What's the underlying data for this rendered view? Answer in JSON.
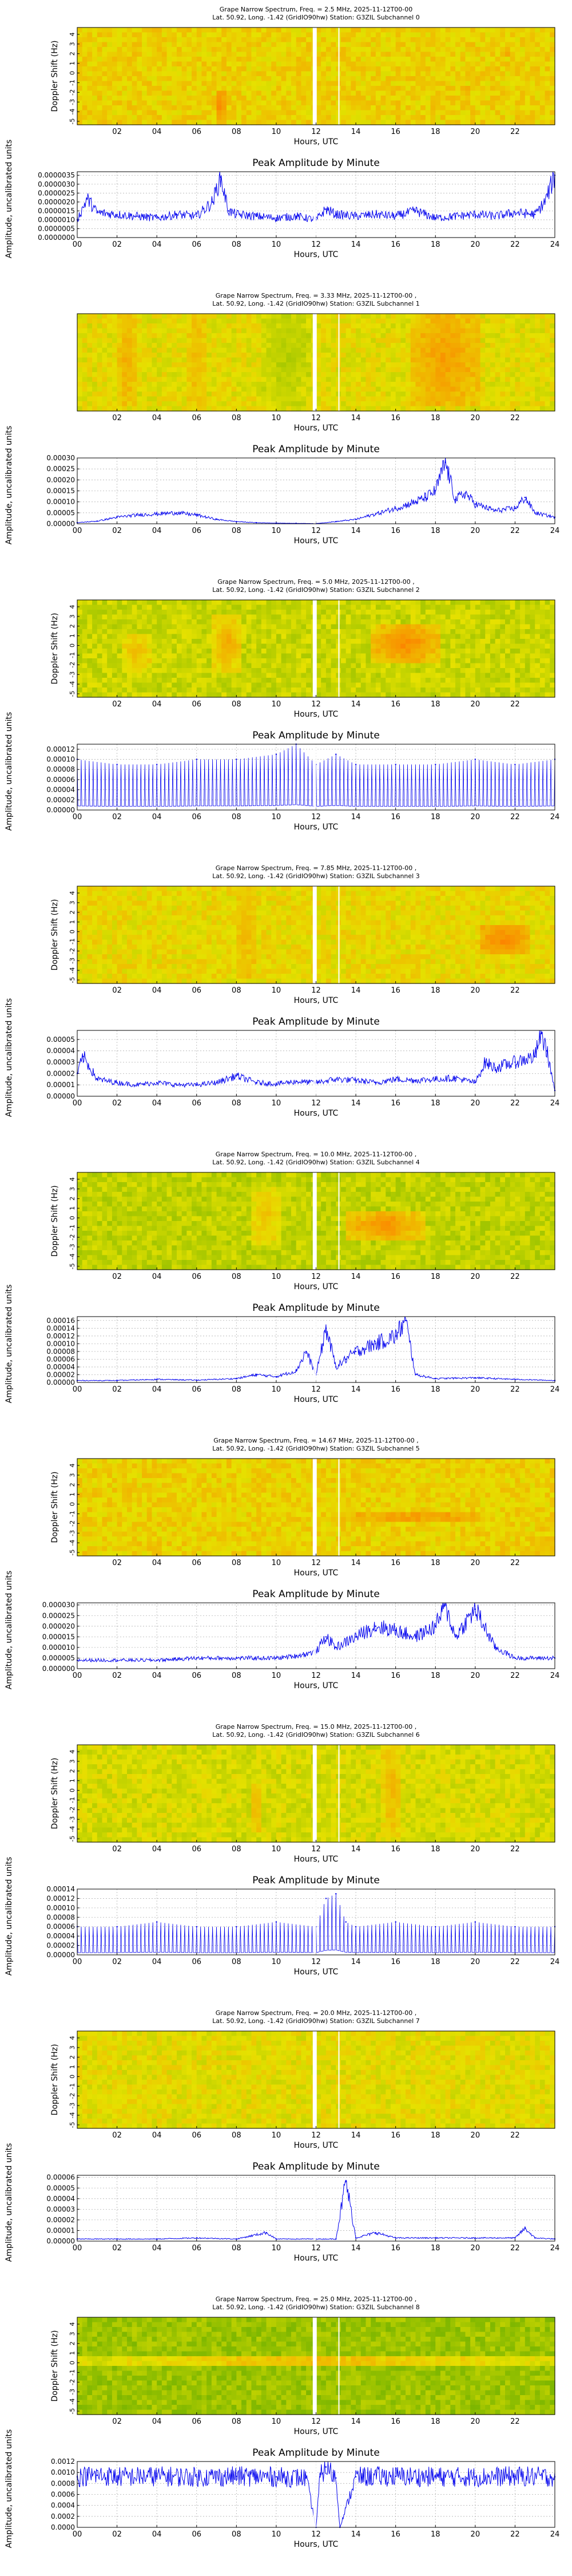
{
  "colors": {
    "line": "#0000ee",
    "spec_green": "#56b000",
    "spec_yellow": "#e6e600",
    "spec_orange": "#ff8000",
    "white_gap": "#ffffff"
  },
  "chart_data": [
    {
      "channel": 0,
      "type": "heatmap",
      "title_line1": "Grape Narrow Spectrum, Freq. = 2.5 MHz, 2025-11-12T00-00",
      "title_line2": "Lat.  50.92, Long.  -1.42 (GridIO90hw) Station: G3ZIL Subchannel 0",
      "xlabel": "Hours, UTC",
      "ylabel": "Doppler Shift (Hz)",
      "xticks": [
        "02",
        "04",
        "06",
        "08",
        "10",
        "12",
        "14",
        "16",
        "18",
        "20",
        "22"
      ],
      "yticks": [
        "4",
        "3",
        "2",
        "1",
        "0",
        "-1",
        "-2",
        "-3",
        "-4",
        "-5"
      ],
      "base": 0.62,
      "features": [
        {
          "x": 7.2,
          "y": -3.5,
          "w": 0.35,
          "h": 3,
          "v": 1.0
        },
        {
          "x": 19.5,
          "y": -2.2,
          "w": 0.25,
          "h": 1,
          "v": 0.8
        },
        {
          "x": 21.5,
          "y": 2.0,
          "w": 0.3,
          "h": 0.8,
          "v": 0.85
        }
      ]
    },
    {
      "channel": 0,
      "type": "line",
      "title": "Peak Amplitude by Minute",
      "xlabel": "Hours, UTC",
      "ylabel": "Amplitude, uncalibrated units",
      "xticks": [
        "00",
        "02",
        "04",
        "06",
        "08",
        "10",
        "12",
        "14",
        "16",
        "18",
        "20",
        "22",
        "24"
      ],
      "yticks": [
        "0.0000000",
        "0.0000005",
        "0.0000010",
        "0.0000015",
        "0.0000020",
        "0.0000025",
        "0.0000030",
        "0.0000035"
      ],
      "ylim": [
        0,
        3.7e-06
      ],
      "x": [
        0,
        0.5,
        1,
        2,
        3,
        4,
        5,
        6,
        6.8,
        7.2,
        7.6,
        8,
        9,
        10,
        11,
        12,
        12.5,
        13,
        14,
        15,
        16,
        17,
        18,
        19,
        20,
        21,
        22,
        23,
        23.5,
        24
      ],
      "y": [
        1e-06,
        2.2e-06,
        1.4e-06,
        1.3e-06,
        1.2e-06,
        1.1e-06,
        1.3e-06,
        1.2e-06,
        2e-06,
        3.4e-06,
        1.5e-06,
        1.3e-06,
        1.2e-06,
        1.1e-06,
        1.2e-06,
        1e-06,
        1.6e-06,
        1.3e-06,
        1.2e-06,
        1.3e-06,
        1.2e-06,
        1.5e-06,
        1.1e-06,
        1.2e-06,
        1.3e-06,
        1.2e-06,
        1.4e-06,
        1.3e-06,
        2e-06,
        3.5e-06
      ]
    },
    {
      "channel": 1,
      "type": "heatmap",
      "title_line1": "Grape Narrow Spectrum, Freq. = 3.33 MHz, 2025-11-12T00-00 ,",
      "title_line2": "Lat.  50.92, Long.  -1.42 (GridIO90hw) Station: G3ZIL Subchannel 1",
      "xlabel": "Hours, UTC",
      "ylabel": "",
      "xticks": [
        "02",
        "04",
        "06",
        "08",
        "10",
        "12",
        "14",
        "16",
        "18",
        "20",
        "22"
      ],
      "yticks": [],
      "base": 0.55,
      "features": [
        {
          "x": 2.5,
          "y": 0,
          "w": 1.0,
          "h": 10,
          "v": 0.78
        },
        {
          "x": 6.0,
          "y": 0,
          "w": 1.2,
          "h": 10,
          "v": 0.72
        },
        {
          "x": 18.5,
          "y": 0,
          "w": 3.5,
          "h": 10,
          "v": 0.85
        },
        {
          "x": 10.5,
          "y": 0,
          "w": 2.5,
          "h": 10,
          "v": 0.38
        }
      ]
    },
    {
      "channel": 1,
      "type": "line",
      "title": "Peak Amplitude by Minute",
      "xlabel": "Hours, UTC",
      "ylabel": "Amplitude, uncalibrated units",
      "xticks": [
        "00",
        "02",
        "04",
        "06",
        "08",
        "10",
        "12",
        "14",
        "16",
        "18",
        "20",
        "22",
        "24"
      ],
      "yticks": [
        "0.00000",
        "0.00005",
        "0.00010",
        "0.00015",
        "0.00020",
        "0.00025",
        "0.00030"
      ],
      "ylim": [
        0,
        0.0003
      ],
      "x": [
        0,
        1,
        2,
        3,
        4,
        5,
        6,
        7,
        8,
        9,
        10,
        11,
        12,
        13,
        14,
        15,
        16,
        17,
        17.5,
        18,
        18.5,
        19,
        19.5,
        20,
        21,
        22,
        22.5,
        23,
        24
      ],
      "y": [
        5e-06,
        1.2e-05,
        3e-05,
        4e-05,
        4.5e-05,
        5e-05,
        4e-05,
        2e-05,
        1e-05,
        5e-06,
        3e-06,
        2e-06,
        1e-06,
        1e-05,
        2e-05,
        4.5e-05,
        7e-05,
        0.0001,
        0.00012,
        0.00015,
        0.00028,
        0.00011,
        0.00014,
        9e-05,
        6e-05,
        7e-05,
        0.00012,
        5e-05,
        3e-05
      ]
    },
    {
      "channel": 2,
      "type": "heatmap",
      "title_line1": "Grape Narrow Spectrum, Freq. = 5.0 MHz, 2025-11-12T00-00 ,",
      "title_line2": "Lat.  50.92, Long.  -1.42 (GridIO90hw) Station: G3ZIL Subchannel 2",
      "xlabel": "Hours, UTC",
      "ylabel": "Doppler Shift (Hz)",
      "xticks": [
        "02",
        "04",
        "06",
        "08",
        "10",
        "12",
        "14",
        "16",
        "18",
        "20",
        "22"
      ],
      "yticks": [
        "4",
        "3",
        "2",
        "1",
        "0",
        "-1",
        "-2",
        "-3",
        "-4",
        "-5"
      ],
      "base": 0.45,
      "features": [
        {
          "x": 7.5,
          "y": 0,
          "w": 1.5,
          "h": 6,
          "v": 0.8
        },
        {
          "x": 16.5,
          "y": 0,
          "w": 3.5,
          "h": 4,
          "v": 0.95
        },
        {
          "x": 3.0,
          "y": -1,
          "w": 1.5,
          "h": 4,
          "v": 0.7
        }
      ]
    },
    {
      "channel": 2,
      "type": "line",
      "title": "Peak Amplitude by Minute",
      "xlabel": "Hours, UTC",
      "ylabel": "Amplitude, uncalibrated units",
      "xticks": [
        "00",
        "02",
        "04",
        "06",
        "08",
        "10",
        "12",
        "14",
        "16",
        "18",
        "20",
        "22",
        "24"
      ],
      "yticks": [
        "0.00000",
        "0.00002",
        "0.00004",
        "0.00006",
        "0.00008",
        "0.00010",
        "0.00012"
      ],
      "ylim": [
        0,
        0.00013
      ],
      "x": [
        0,
        2,
        4,
        6,
        8,
        10,
        11,
        12,
        13,
        14,
        16,
        18,
        20,
        22,
        24
      ],
      "y": [
        0.0001,
        9e-05,
        9e-05,
        0.0001,
        0.0001,
        0.00011,
        0.00013,
        9e-05,
        0.00011,
        9e-05,
        9e-05,
        9e-05,
        0.0001,
        9e-05,
        0.0001
      ]
    },
    {
      "channel": 3,
      "type": "heatmap",
      "title_line1": "Grape Narrow Spectrum, Freq. = 7.85 MHz, 2025-11-12T00-00 ,",
      "title_line2": "Lat.  50.92, Long.  -1.42 (GridIO90hw) Station: G3ZIL Subchannel 3",
      "xlabel": "Hours, UTC",
      "ylabel": "Doppler Shift (Hz)",
      "xticks": [
        "02",
        "04",
        "06",
        "08",
        "10",
        "12",
        "14",
        "16",
        "18",
        "20",
        "22"
      ],
      "yticks": [
        "4",
        "3",
        "2",
        "1",
        "0",
        "-1",
        "-2",
        "-3",
        "-4",
        "-5"
      ],
      "base": 0.58,
      "features": [
        {
          "x": 21.5,
          "y": -1,
          "w": 2.5,
          "h": 3,
          "v": 0.95
        },
        {
          "x": 8.5,
          "y": 0,
          "w": 1.0,
          "h": 10,
          "v": 0.72
        }
      ]
    },
    {
      "channel": 3,
      "type": "line",
      "title": "Peak Amplitude by Minute",
      "xlabel": "Hours, UTC",
      "ylabel": "Amplitude, uncalibrated units",
      "xticks": [
        "00",
        "02",
        "04",
        "06",
        "08",
        "10",
        "12",
        "14",
        "16",
        "18",
        "20",
        "22",
        "24"
      ],
      "yticks": [
        "0.00000",
        "0.00001",
        "0.00002",
        "0.00003",
        "0.00004",
        "0.00005"
      ],
      "ylim": [
        0,
        5.8e-05
      ],
      "x": [
        0,
        0.3,
        1,
        2,
        3,
        4,
        5,
        6,
        7,
        8,
        9,
        10,
        11,
        12,
        13,
        14,
        15,
        16,
        17,
        18,
        19,
        20,
        20.5,
        21,
        22,
        23,
        23.3,
        23.6,
        24
      ],
      "y": [
        2e-05,
        3.5e-05,
        1.5e-05,
        1.2e-05,
        1e-05,
        1.2e-05,
        1e-05,
        1e-05,
        1.2e-05,
        1.8e-05,
        1.2e-05,
        1.1e-05,
        1.3e-05,
        1.2e-05,
        1.5e-05,
        1.4e-05,
        1.2e-05,
        1.5e-05,
        1.4e-05,
        1.5e-05,
        1.6e-05,
        1.2e-05,
        3e-05,
        2.5e-05,
        3e-05,
        3.5e-05,
        5.5e-05,
        4e-05,
        5e-06
      ]
    },
    {
      "channel": 4,
      "type": "heatmap",
      "title_line1": "Grape Narrow Spectrum, Freq. = 10.0 MHz, 2025-11-12T00-00 ,",
      "title_line2": "Lat.  50.92, Long.  -1.42 (GridIO90hw) Station: G3ZIL Subchannel 4",
      "xlabel": "Hours, UTC",
      "ylabel": "Doppler Shift (Hz)",
      "xticks": [
        "02",
        "04",
        "06",
        "08",
        "10",
        "12",
        "14",
        "16",
        "18",
        "20",
        "22"
      ],
      "yticks": [
        "4",
        "3",
        "2",
        "1",
        "0",
        "-1",
        "-2",
        "-3",
        "-4",
        "-5"
      ],
      "base": 0.42,
      "features": [
        {
          "x": 15.5,
          "y": -1,
          "w": 4.0,
          "h": 3,
          "v": 0.95
        },
        {
          "x": 9.5,
          "y": 0,
          "w": 1.5,
          "h": 6,
          "v": 0.7
        }
      ]
    },
    {
      "channel": 4,
      "type": "line",
      "title": "Peak Amplitude by Minute",
      "xlabel": "Hours, UTC",
      "ylabel": "Amplitude, uncalibrated units",
      "xticks": [
        "00",
        "02",
        "04",
        "06",
        "08",
        "10",
        "12",
        "14",
        "16",
        "18",
        "20",
        "22",
        "24"
      ],
      "yticks": [
        "0.00000",
        "0.00002",
        "0.00004",
        "0.00006",
        "0.00008",
        "0.00010",
        "0.00012",
        "0.00014",
        "0.00016"
      ],
      "ylim": [
        0,
        0.00017
      ],
      "x": [
        0,
        2,
        4,
        6,
        8,
        9,
        10,
        11,
        11.5,
        12,
        12.5,
        13,
        13.5,
        14,
        15,
        16,
        16.5,
        17,
        18,
        20,
        22,
        24
      ],
      "y": [
        5e-06,
        5e-06,
        8e-06,
        6e-06,
        1e-05,
        2e-05,
        1.5e-05,
        3e-05,
        8e-05,
        2e-05,
        0.00014,
        4e-05,
        6e-05,
        8e-05,
        0.0001,
        0.00012,
        0.00016,
        2e-05,
        1e-05,
        1.2e-05,
        8e-06,
        5e-06
      ]
    },
    {
      "channel": 5,
      "type": "heatmap",
      "title_line1": "Grape Narrow Spectrum, Freq. = 14.67 MHz, 2025-11-12T00-00 ,",
      "title_line2": "Lat.  50.92, Long.  -1.42 (GridIO90hw) Station: G3ZIL Subchannel 5",
      "xlabel": "Hours, UTC",
      "ylabel": "Doppler Shift (Hz)",
      "xticks": [
        "02",
        "04",
        "06",
        "08",
        "10",
        "12",
        "14",
        "16",
        "18",
        "20",
        "22"
      ],
      "yticks": [
        "4",
        "3",
        "2",
        "1",
        "0",
        "-1",
        "-2",
        "-3",
        "-4",
        "-5"
      ],
      "base": 0.62,
      "features": [
        {
          "x": 17.0,
          "y": -1.5,
          "w": 6.5,
          "h": 0.7,
          "v": 0.9
        }
      ]
    },
    {
      "channel": 5,
      "type": "line",
      "title": "Peak Amplitude by Minute",
      "xlabel": "Hours, UTC",
      "ylabel": "Amplitude, uncalibrated units",
      "xticks": [
        "00",
        "02",
        "04",
        "06",
        "08",
        "10",
        "12",
        "14",
        "16",
        "18",
        "20",
        "22",
        "24"
      ],
      "yticks": [
        "0.000000",
        "0.000005",
        "0.000010",
        "0.000015",
        "0.000020",
        "0.000025",
        "0.000030"
      ],
      "ylim": [
        0,
        3.1e-05
      ],
      "x": [
        0,
        2,
        4,
        6,
        8,
        10,
        11,
        12,
        12.5,
        13,
        14,
        15,
        16,
        17,
        18,
        18.5,
        19,
        20,
        21,
        22,
        24
      ],
      "y": [
        4e-06,
        4e-06,
        4e-06,
        5e-06,
        5e-06,
        5e-06,
        6e-06,
        8e-06,
        1.5e-05,
        1e-05,
        1.5e-05,
        2e-05,
        1.8e-05,
        1.5e-05,
        2e-05,
        3e-05,
        1.5e-05,
        2.8e-05,
        1e-05,
        5e-06,
        5e-06
      ]
    },
    {
      "channel": 6,
      "type": "heatmap",
      "title_line1": "Grape Narrow Spectrum, Freq. = 15.0 MHz, 2025-11-12T00-00 ,",
      "title_line2": "Lat.  50.92, Long.  -1.42 (GridIO90hw) Station: G3ZIL Subchannel 6",
      "xlabel": "Hours, UTC",
      "ylabel": "Doppler Shift (Hz)",
      "xticks": [
        "02",
        "04",
        "06",
        "08",
        "10",
        "12",
        "14",
        "16",
        "18",
        "20",
        "22"
      ],
      "yticks": [
        "4",
        "3",
        "2",
        "1",
        "0",
        "-1",
        "-2",
        "-3",
        "-4",
        "-5"
      ],
      "base": 0.5,
      "features": [
        {
          "x": 9.0,
          "y": -2,
          "w": 0.6,
          "h": 5,
          "v": 0.8
        },
        {
          "x": 15.8,
          "y": 0,
          "w": 1.0,
          "h": 10,
          "v": 0.75
        }
      ]
    },
    {
      "channel": 6,
      "type": "line",
      "title": "Peak Amplitude by Minute",
      "xlabel": "Hours, UTC",
      "ylabel": "Amplitude, uncalibrated units",
      "xticks": [
        "00",
        "02",
        "04",
        "06",
        "08",
        "10",
        "12",
        "14",
        "16",
        "18",
        "20",
        "22",
        "24"
      ],
      "yticks": [
        "0.00000",
        "0.00002",
        "0.00004",
        "0.00006",
        "0.00008",
        "0.00010",
        "0.00012",
        "0.00014"
      ],
      "ylim": [
        0,
        0.00014
      ],
      "x": [
        0,
        2,
        4,
        6,
        8,
        10,
        12,
        12.5,
        13,
        13.5,
        14,
        16,
        18,
        20,
        22,
        24
      ],
      "y": [
        6e-05,
        6e-05,
        7e-05,
        6e-05,
        6e-05,
        7e-05,
        6e-05,
        0.00012,
        0.00013,
        7e-05,
        6e-05,
        7e-05,
        6e-05,
        7e-05,
        6e-05,
        6e-05
      ]
    },
    {
      "channel": 7,
      "type": "heatmap",
      "title_line1": "Grape Narrow Spectrum, Freq. = 20.0 MHz, 2025-11-12T00-00 ,",
      "title_line2": "Lat.  50.92, Long.  -1.42 (GridIO90hw) Station: G3ZIL Subchannel 7",
      "xlabel": "Hours, UTC",
      "ylabel": "Doppler Shift (Hz)",
      "xticks": [
        "02",
        "04",
        "06",
        "08",
        "10",
        "12",
        "14",
        "16",
        "18",
        "20",
        "22"
      ],
      "yticks": [
        "4",
        "3",
        "2",
        "1",
        "0",
        "-1",
        "-2",
        "-3",
        "-4",
        "-5"
      ],
      "base": 0.55,
      "features": []
    },
    {
      "channel": 7,
      "type": "line",
      "title": "Peak Amplitude by Minute",
      "xlabel": "Hours, UTC",
      "ylabel": "Amplitude, uncalibrated units",
      "xticks": [
        "00",
        "02",
        "04",
        "06",
        "08",
        "10",
        "12",
        "14",
        "16",
        "18",
        "20",
        "22",
        "24"
      ],
      "yticks": [
        "0.00000",
        "0.00001",
        "0.00002",
        "0.00003",
        "0.00004",
        "0.00005",
        "0.00006"
      ],
      "ylim": [
        0,
        6.2e-05
      ],
      "x": [
        0,
        2,
        4,
        6,
        8,
        9.5,
        10,
        12,
        13,
        13.5,
        14,
        15,
        16,
        18,
        20,
        22,
        22.5,
        23,
        24
      ],
      "y": [
        2e-06,
        2e-06,
        2e-06,
        3e-06,
        2e-06,
        8e-06,
        2e-06,
        2e-06,
        2e-06,
        5.7e-05,
        3e-06,
        8e-06,
        3e-06,
        3e-06,
        3e-06,
        3e-06,
        1.2e-05,
        3e-06,
        2e-06
      ]
    },
    {
      "channel": 8,
      "type": "heatmap",
      "title_line1": "Grape Narrow Spectrum, Freq. = 25.0 MHz, 2025-11-12T00-00 ,",
      "title_line2": "Lat.  50.92, Long.  -1.42 (GridIO90hw) Station: G3ZIL Subchannel 8",
      "xlabel": "Hours, UTC",
      "ylabel": "Doppler Shift (Hz)",
      "xticks": [
        "02",
        "04",
        "06",
        "08",
        "10",
        "12",
        "14",
        "16",
        "18",
        "20",
        "22"
      ],
      "yticks": [
        "4",
        "3",
        "2",
        "1",
        "0",
        "-1",
        "-2",
        "-3",
        "-4",
        "-5"
      ],
      "base": 0.3,
      "features": [
        {
          "x": 12.0,
          "y": 0,
          "w": 24.0,
          "h": 0.6,
          "v": 0.9
        }
      ]
    },
    {
      "channel": 8,
      "type": "line",
      "title": "Peak Amplitude by Minute",
      "xlabel": "Hours, UTC",
      "ylabel": "Amplitude, uncalibrated units",
      "xticks": [
        "00",
        "02",
        "04",
        "06",
        "08",
        "10",
        "12",
        "14",
        "16",
        "18",
        "20",
        "22",
        "24"
      ],
      "yticks": [
        "0.0000",
        "0.0002",
        "0.0004",
        "0.0006",
        "0.0008",
        "0.0010",
        "0.0012"
      ],
      "ylim": [
        0,
        0.0012
      ],
      "x": [
        0,
        1,
        2,
        4,
        6,
        8,
        10,
        11.5,
        12,
        12.2,
        12.5,
        13,
        13.2,
        14,
        16,
        18,
        20,
        22,
        24
      ],
      "y": [
        0.00092,
        0.00095,
        0.00092,
        0.00093,
        0.00092,
        0.00093,
        0.00092,
        0.0009,
        0.0,
        0.00092,
        0.0011,
        0.0009,
        0.0,
        0.00092,
        0.00093,
        0.00092,
        0.00092,
        0.00093,
        0.00092
      ]
    }
  ]
}
